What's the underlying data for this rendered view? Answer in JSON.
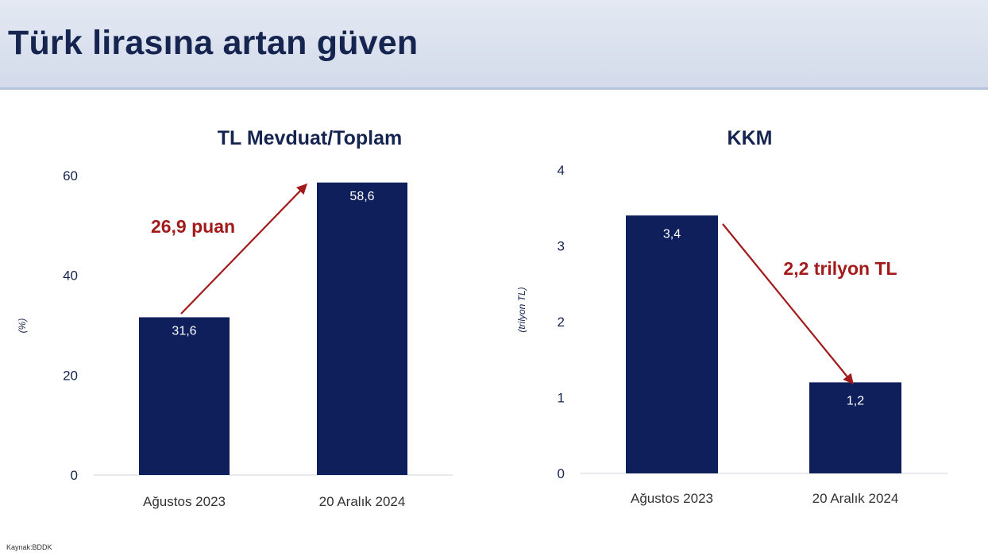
{
  "page": {
    "title": "Türk lirasına artan güven",
    "source": "Kaynak:BDDK"
  },
  "colors": {
    "bar": "#0f1f5c",
    "arrow": "#a31a1a",
    "title": "#16254f",
    "axis": "#16254f"
  },
  "chart_data": [
    {
      "type": "bar",
      "title": "TL Mevduat/Toplam",
      "ylabel": "(%)",
      "categories": [
        "Ağustos 2023",
        "20 Aralık 2024"
      ],
      "values": [
        31.6,
        58.6
      ],
      "value_labels": [
        "31,6",
        "58,6"
      ],
      "ylim": [
        0,
        60
      ],
      "yticks": [
        0,
        20,
        40,
        60
      ],
      "ytick_labels": [
        "0",
        "20",
        "40",
        "60"
      ],
      "annotation": {
        "text": "26,9 puan",
        "direction": "up"
      },
      "grid": false
    },
    {
      "type": "bar",
      "title": "KKM",
      "ylabel": "(trilyon TL)",
      "categories": [
        "Ağustos 2023",
        "20 Aralık 2024"
      ],
      "values": [
        3.4,
        1.2
      ],
      "value_labels": [
        "3,4",
        "1,2"
      ],
      "ylim": [
        0,
        4
      ],
      "yticks": [
        0,
        1,
        2,
        3,
        4
      ],
      "ytick_labels": [
        "0",
        "1",
        "2",
        "3",
        "4"
      ],
      "annotation": {
        "text": "2,2 trilyon TL",
        "direction": "down"
      },
      "grid": false
    }
  ]
}
